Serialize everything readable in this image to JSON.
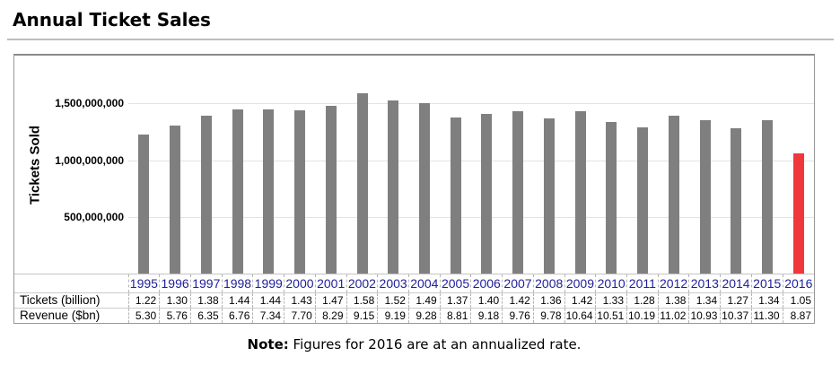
{
  "page": {
    "title": "Annual Ticket Sales",
    "note": {
      "label": "Note:",
      "text": "Figures for 2016 are at an annualized rate."
    }
  },
  "chart_data": {
    "type": "bar",
    "title": "Annual Ticket Sales",
    "xlabel": "",
    "ylabel": "Tickets Sold",
    "ylim": [
      0,
      1900000000
    ],
    "grid": true,
    "legend": false,
    "y_tick_values": [
      1500000000,
      1000000000,
      500000000
    ],
    "y_tick_labels": [
      "1,500,000,000",
      "1,000,000,000",
      "500,000,000"
    ],
    "categories": [
      "1995",
      "1996",
      "1997",
      "1998",
      "1999",
      "2000",
      "2001",
      "2002",
      "2003",
      "2004",
      "2005",
      "2006",
      "2007",
      "2008",
      "2009",
      "2010",
      "2011",
      "2012",
      "2013",
      "2014",
      "2015",
      "2016"
    ],
    "bars_depict": "tickets_sold_per_year",
    "series": [
      {
        "name": "Tickets (billion)",
        "values": [
          1.22,
          1.3,
          1.38,
          1.44,
          1.44,
          1.43,
          1.47,
          1.58,
          1.52,
          1.49,
          1.37,
          1.4,
          1.42,
          1.36,
          1.42,
          1.33,
          1.28,
          1.38,
          1.34,
          1.27,
          1.34,
          1.05
        ]
      },
      {
        "name": "Revenue ($bn)",
        "values": [
          5.3,
          5.76,
          6.35,
          6.76,
          7.34,
          7.7,
          8.29,
          9.15,
          9.19,
          9.28,
          8.81,
          9.18,
          9.76,
          9.78,
          10.64,
          10.51,
          10.19,
          11.02,
          10.93,
          10.37,
          11.3,
          8.87
        ]
      }
    ],
    "bar_color": "#7f7f7f",
    "highlight": {
      "category": "2016",
      "color": "#f0383c"
    }
  },
  "table": {
    "corner_label": "",
    "row_labels": {
      "tickets": "Tickets (billion)",
      "revenue": "Revenue ($bn)"
    },
    "years": [
      "1995",
      "1996",
      "1997",
      "1998",
      "1999",
      "2000",
      "2001",
      "2002",
      "2003",
      "2004",
      "2005",
      "2006",
      "2007",
      "2008",
      "2009",
      "2010",
      "2011",
      "2012",
      "2013",
      "2014",
      "2015",
      "2016"
    ],
    "tickets": [
      "1.22",
      "1.30",
      "1.38",
      "1.44",
      "1.44",
      "1.43",
      "1.47",
      "1.58",
      "1.52",
      "1.49",
      "1.37",
      "1.40",
      "1.42",
      "1.36",
      "1.42",
      "1.33",
      "1.28",
      "1.38",
      "1.34",
      "1.27",
      "1.34",
      "1.05"
    ],
    "revenue": [
      "5.30",
      "5.76",
      "6.35",
      "6.76",
      "7.34",
      "7.70",
      "8.29",
      "9.15",
      "9.19",
      "9.28",
      "8.81",
      "9.18",
      "9.76",
      "9.78",
      "10.64",
      "10.51",
      "10.19",
      "11.02",
      "10.93",
      "10.37",
      "11.30",
      "8.87"
    ]
  }
}
